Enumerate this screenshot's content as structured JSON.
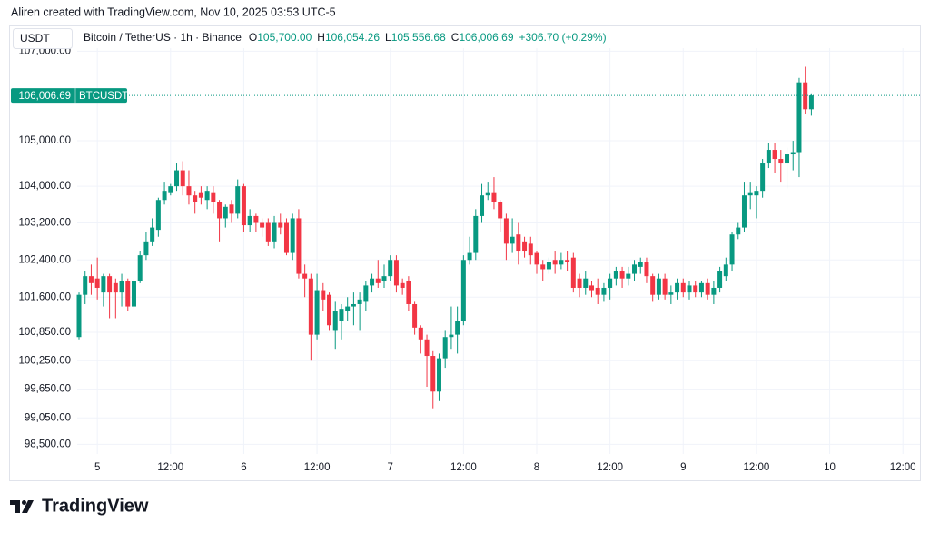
{
  "watermark": "Aliren created with TradingView.com, Nov 10, 2025 03:53 UTC-5",
  "symbol_bar": {
    "button": "USDT",
    "symbol": "Bitcoin / TetherUS · 1h · Binance",
    "ohlc": [
      {
        "key": "O",
        "text": "105,700.00"
      },
      {
        "key": "H",
        "text": "106,054.26"
      },
      {
        "key": "L",
        "text": "105,556.68"
      },
      {
        "key": "C",
        "text": "106,006.69"
      }
    ],
    "change": "+306.70 (+0.29%)"
  },
  "brand": "TradingView",
  "chart_data": {
    "type": "candlestick",
    "log": true,
    "grid": true,
    "up_color": "#089981",
    "down_color": "#f23645",
    "ylim": [
      98300,
      107130
    ],
    "yticks": [
      {
        "value": 98500,
        "label": "98,500.00"
      },
      {
        "value": 99050,
        "label": "99,050.00"
      },
      {
        "value": 99650,
        "label": "99,650.00"
      },
      {
        "value": 100250,
        "label": "100,250.00"
      },
      {
        "value": 100850,
        "label": "100,850.00"
      },
      {
        "value": 101600,
        "label": "101,600.00"
      },
      {
        "value": 102400,
        "label": "102,400.00"
      },
      {
        "value": 103200,
        "label": "103,200.00"
      },
      {
        "value": 104000,
        "label": "104,000.00"
      },
      {
        "value": 105000,
        "label": "105,000.00"
      },
      {
        "value": 107000,
        "label": "107,000.00"
      }
    ],
    "last_price": {
      "value": 106006.69,
      "label": "106,006.69",
      "name": "BTCUSDT"
    },
    "categories": [
      null,
      null,
      null,
      "5",
      null,
      null,
      null,
      null,
      null,
      null,
      null,
      null,
      null,
      null,
      null,
      "12:00",
      null,
      null,
      null,
      null,
      null,
      null,
      null,
      null,
      null,
      null,
      null,
      "6",
      null,
      null,
      null,
      null,
      null,
      null,
      null,
      null,
      null,
      null,
      null,
      "12:00",
      null,
      null,
      null,
      null,
      null,
      null,
      null,
      null,
      null,
      null,
      null,
      "7",
      null,
      null,
      null,
      null,
      null,
      null,
      null,
      null,
      null,
      null,
      null,
      "12:00",
      null,
      null,
      null,
      null,
      null,
      null,
      null,
      null,
      null,
      null,
      null,
      "8",
      null,
      null,
      null,
      null,
      null,
      null,
      null,
      null,
      null,
      null,
      null,
      "12:00",
      null,
      null,
      null,
      null,
      null,
      null,
      null,
      null,
      null,
      null,
      null,
      "9",
      null,
      null,
      null,
      null,
      null,
      null,
      null,
      null,
      null,
      null,
      null,
      "12:00",
      null,
      null,
      null,
      null,
      null,
      null,
      null,
      null,
      null,
      null,
      null,
      "10",
      null,
      null,
      null,
      null,
      null,
      null,
      null,
      null,
      null,
      null,
      null,
      "12:00",
      null,
      null
    ],
    "open": [
      100750,
      101650,
      102050,
      102000,
      101700,
      102050,
      101900,
      101700,
      101950,
      101400,
      101950,
      102500,
      102800,
      103050,
      103700,
      103850,
      104000,
      104350,
      104000,
      103800,
      103850,
      103700,
      103850,
      103650,
      103300,
      103600,
      103400,
      104000,
      103150,
      103350,
      103200,
      103200,
      102800,
      103200,
      103200,
      102550,
      103300,
      102100,
      102000,
      100800,
      101750,
      101650,
      100900,
      101100,
      101300,
      101400,
      101450,
      101500,
      101850,
      102000,
      101950,
      102050,
      102400,
      101900,
      101950,
      101450,
      100950,
      100700,
      100350,
      99600,
      100300,
      100750,
      100800,
      101100,
      102400,
      102550,
      103350,
      103800,
      103850,
      103650,
      103300,
      102750,
      102950,
      102800,
      102750,
      102550,
      102300,
      102200,
      102400,
      102300,
      102400,
      102450,
      102000,
      101800,
      101850,
      101800,
      101650,
      101800,
      102000,
      102150,
      102000,
      102100,
      102250,
      102350,
      102050,
      101650,
      102000,
      101650,
      101700,
      101900,
      101700,
      101850,
      101700,
      101900,
      101650,
      101800,
      102050,
      102300,
      102950,
      103100,
      103800,
      103800,
      103900,
      104500,
      104800,
      104600,
      104500,
      104700,
      104750,
      106300,
      105700,
      null,
      null,
      null,
      null,
      null,
      null,
      null,
      null,
      null,
      null,
      null,
      null,
      null,
      null,
      null,
      null,
      null
    ],
    "high": [
      101700,
      102150,
      102300,
      102450,
      102100,
      102100,
      102000,
      102100,
      102000,
      102000,
      102600,
      103000,
      103300,
      103750,
      104100,
      104050,
      104500,
      104550,
      104350,
      103900,
      104000,
      104000,
      104000,
      103700,
      103600,
      103700,
      104150,
      104050,
      103500,
      103400,
      103300,
      103300,
      103350,
      103400,
      103300,
      103400,
      103500,
      102300,
      102100,
      102100,
      101900,
      101700,
      101500,
      101450,
      101600,
      101700,
      101700,
      101950,
      102100,
      102400,
      102300,
      102500,
      102500,
      102000,
      102050,
      101500,
      101000,
      100800,
      100450,
      100400,
      100900,
      101400,
      101400,
      102500,
      102900,
      103500,
      104050,
      104100,
      104200,
      103700,
      103400,
      103300,
      103200,
      102900,
      102900,
      102600,
      102400,
      102450,
      102600,
      102550,
      102600,
      102550,
      102100,
      102150,
      101950,
      102000,
      101900,
      102100,
      102250,
      102250,
      102250,
      102400,
      102450,
      102450,
      102100,
      102100,
      102100,
      101850,
      102000,
      102000,
      101950,
      101950,
      101950,
      102000,
      101950,
      102250,
      102450,
      103000,
      103200,
      104100,
      104100,
      104000,
      104600,
      104950,
      104950,
      104800,
      104850,
      105000,
      106400,
      106650,
      106054.26,
      null,
      null,
      null,
      null,
      null,
      null,
      null,
      null,
      null,
      null,
      null,
      null,
      null,
      null,
      null,
      null,
      null
    ],
    "low": [
      100700,
      101450,
      101650,
      101550,
      101400,
      101150,
      101150,
      101400,
      101300,
      101350,
      101900,
      102400,
      102700,
      102900,
      103600,
      103800,
      103900,
      103800,
      103600,
      103400,
      103600,
      103500,
      103400,
      102800,
      103100,
      103200,
      103300,
      103000,
      103000,
      103000,
      102900,
      102700,
      102650,
      102950,
      102500,
      102400,
      102000,
      101600,
      100250,
      100700,
      101300,
      100900,
      100500,
      100700,
      101100,
      101000,
      100900,
      101300,
      101700,
      101800,
      101800,
      101950,
      101700,
      101650,
      101300,
      100800,
      100400,
      99700,
      99250,
      99400,
      100100,
      100500,
      100400,
      101000,
      102300,
      102400,
      103200,
      103700,
      103500,
      103000,
      102400,
      102550,
      102300,
      102450,
      102300,
      102100,
      101950,
      102100,
      102100,
      102200,
      102150,
      101700,
      101600,
      101650,
      101600,
      101450,
      101500,
      101550,
      101850,
      101800,
      101850,
      101950,
      102100,
      101900,
      101500,
      101550,
      101550,
      101450,
      101550,
      101600,
      101550,
      101600,
      101600,
      101550,
      101450,
      101700,
      101950,
      102150,
      102850,
      103000,
      103500,
      103300,
      103750,
      104400,
      104300,
      104100,
      103950,
      104350,
      104200,
      105600,
      105556.68,
      null,
      null,
      null,
      null,
      null,
      null,
      null,
      null,
      null,
      null,
      null,
      null,
      null,
      null,
      null,
      null,
      null
    ],
    "close": [
      101650,
      102050,
      101900,
      101800,
      102050,
      101700,
      101700,
      101950,
      101400,
      101950,
      102500,
      102800,
      103100,
      103700,
      103900,
      104000,
      104350,
      104000,
      103800,
      103650,
      103750,
      103900,
      103650,
      103300,
      103550,
      103400,
      104000,
      103150,
      103350,
      103200,
      103100,
      102800,
      103200,
      103100,
      102550,
      103300,
      102100,
      102000,
      100800,
      101750,
      101550,
      101000,
      101300,
      101350,
      101400,
      101450,
      101550,
      101850,
      102000,
      101900,
      102050,
      102400,
      101850,
      101800,
      101450,
      100950,
      100700,
      100350,
      99600,
      100300,
      100750,
      100800,
      101100,
      102400,
      102550,
      103350,
      103800,
      103850,
      103650,
      103300,
      102750,
      102900,
      102600,
      102600,
      102500,
      102300,
      102200,
      102350,
      102300,
      102400,
      102350,
      101800,
      101800,
      102000,
      101750,
      101650,
      101800,
      102000,
      102150,
      102000,
      102100,
      102300,
      102350,
      102050,
      101650,
      102000,
      101650,
      101700,
      101900,
      101700,
      101850,
      101700,
      101900,
      101650,
      101800,
      102150,
      102300,
      102950,
      103100,
      103800,
      103850,
      103900,
      104500,
      104800,
      104600,
      104500,
      104700,
      104750,
      106300,
      105700,
      106006.69,
      null,
      null,
      null,
      null,
      null,
      null,
      null,
      null,
      null,
      null,
      null,
      null,
      null,
      null,
      null,
      null,
      null
    ]
  }
}
